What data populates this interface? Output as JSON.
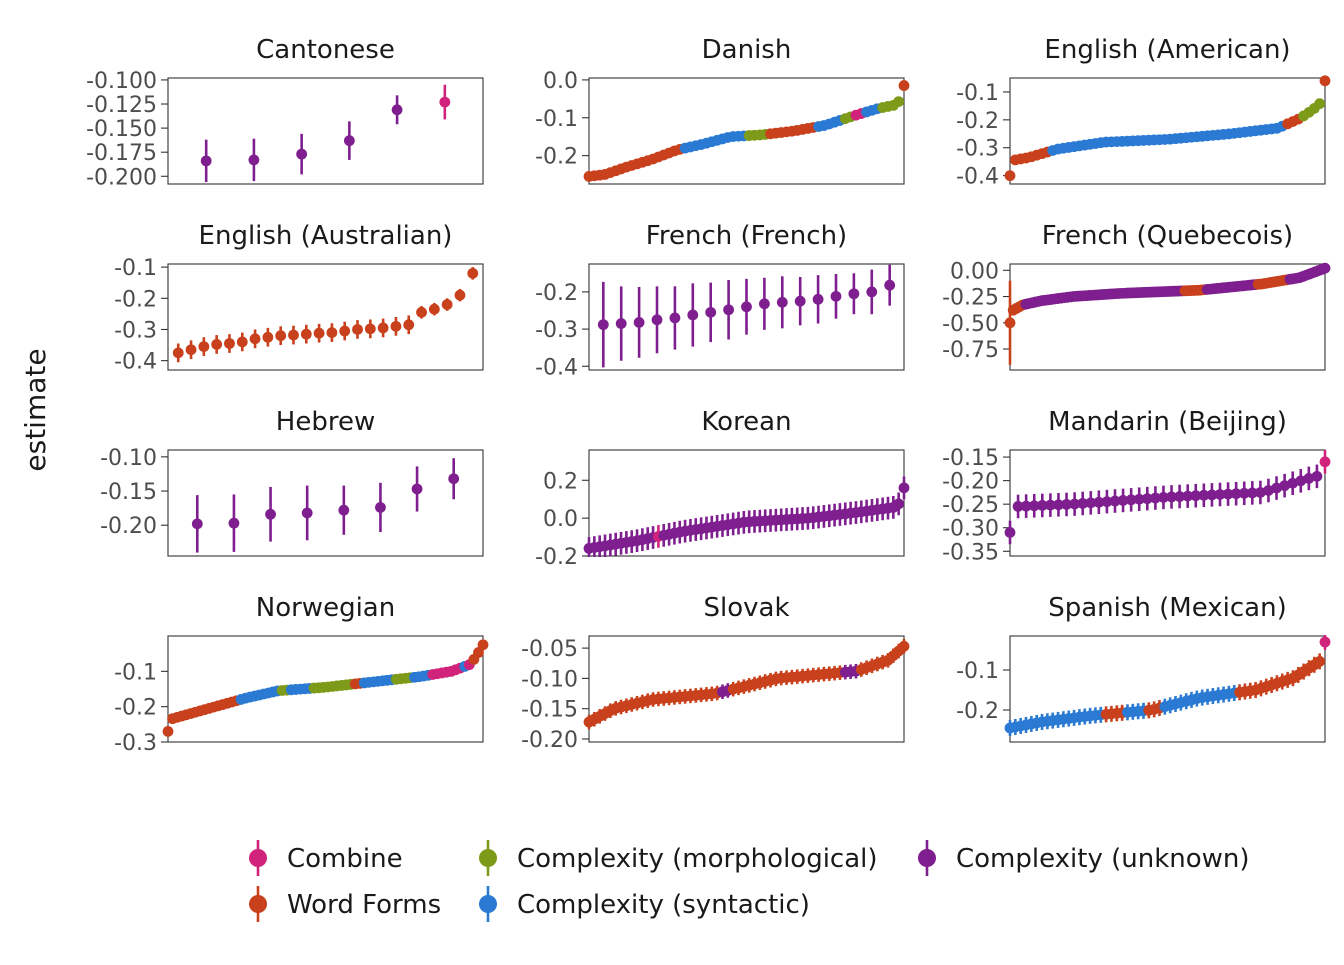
{
  "chart_data": {
    "type": "scatter",
    "subtype": "point-range (estimate with interval), faceted 4x3",
    "ylabel": "estimate",
    "xlabel": "",
    "x_axis": "items ordered by estimate (no tick labels)",
    "grid": false,
    "legend_position": "bottom",
    "legend": [
      {
        "name": "Combine",
        "color": "#D2237C"
      },
      {
        "name": "Word Forms",
        "color": "#C8401C"
      },
      {
        "name": "Complexity (morphological)",
        "color": "#7D9A18"
      },
      {
        "name": "Complexity (syntactic)",
        "color": "#2A7AD4"
      },
      {
        "name": "Complexity (unknown)",
        "color": "#7E1E8F"
      }
    ],
    "panels": [
      {
        "title": "Cantonese",
        "ylim": [
          -0.208,
          -0.098
        ],
        "yticks": [
          -0.2,
          -0.175,
          -0.15,
          -0.125,
          -0.1
        ],
        "tick_labels": [
          "-0.200",
          "-0.175",
          "-0.150",
          "-0.125",
          "-0.100"
        ],
        "points": [
          [
            -0.184,
            0.022,
            4
          ],
          [
            -0.183,
            0.022,
            4
          ],
          [
            -0.177,
            0.021,
            4
          ],
          [
            -0.163,
            0.02,
            4
          ],
          [
            -0.131,
            0.015,
            4
          ],
          [
            -0.123,
            0.018,
            0
          ]
        ]
      },
      {
        "title": "Danish",
        "ylim": [
          -0.275,
          0.005
        ],
        "yticks": [
          -0.2,
          -0.1,
          0.0
        ],
        "tick_labels": [
          "-0.2",
          "-0.1",
          "0.0"
        ],
        "n": 60,
        "stops": [
          [
            0,
            -0.255
          ],
          [
            0.05,
            -0.25
          ],
          [
            0.12,
            -0.23
          ],
          [
            0.2,
            -0.21
          ],
          [
            0.28,
            -0.185
          ],
          [
            0.36,
            -0.17
          ],
          [
            0.45,
            -0.15
          ],
          [
            0.55,
            -0.145
          ],
          [
            0.65,
            -0.135
          ],
          [
            0.75,
            -0.12
          ],
          [
            0.84,
            -0.095
          ],
          [
            0.92,
            -0.075
          ],
          [
            0.98,
            -0.065
          ],
          [
            1,
            -0.015
          ]
        ],
        "err": 0.01,
        "cats": [
          [
            0.3,
            1
          ],
          [
            0.5,
            3
          ],
          [
            0.56,
            2
          ],
          [
            0.72,
            1
          ],
          [
            0.8,
            3
          ],
          [
            0.84,
            2
          ],
          [
            0.88,
            0
          ],
          [
            0.92,
            3
          ],
          [
            1.01,
            2
          ]
        ],
        "last_cat": 1
      },
      {
        "title": "English (American)",
        "ylim": [
          -0.43,
          -0.05
        ],
        "yticks": [
          -0.4,
          -0.3,
          -0.2,
          -0.1
        ],
        "tick_labels": [
          "-0.4",
          "-0.3",
          "-0.2",
          "-0.1"
        ],
        "n": 60,
        "stops": [
          [
            0,
            -0.4
          ],
          [
            0.01,
            -0.345
          ],
          [
            0.06,
            -0.335
          ],
          [
            0.15,
            -0.305
          ],
          [
            0.3,
            -0.28
          ],
          [
            0.5,
            -0.27
          ],
          [
            0.7,
            -0.25
          ],
          [
            0.85,
            -0.23
          ],
          [
            0.92,
            -0.195
          ],
          [
            0.96,
            -0.165
          ],
          [
            0.985,
            -0.14
          ],
          [
            1,
            -0.06
          ]
        ],
        "err": 0.012,
        "cats": [
          [
            0.12,
            1
          ],
          [
            0.88,
            3
          ],
          [
            0.93,
            1
          ],
          [
            1.01,
            2
          ]
        ],
        "last_cat": 1
      },
      {
        "title": "English (Australian)",
        "ylim": [
          -0.43,
          -0.09
        ],
        "yticks": [
          -0.4,
          -0.3,
          -0.2,
          -0.1
        ],
        "tick_labels": [
          "-0.4",
          "-0.3",
          "-0.2",
          "-0.1"
        ],
        "points": [
          [
            -0.375,
            0.03,
            1
          ],
          [
            -0.365,
            0.03,
            1
          ],
          [
            -0.355,
            0.03,
            1
          ],
          [
            -0.348,
            0.03,
            1
          ],
          [
            -0.345,
            0.03,
            1
          ],
          [
            -0.34,
            0.03,
            1
          ],
          [
            -0.33,
            0.03,
            1
          ],
          [
            -0.325,
            0.03,
            1
          ],
          [
            -0.32,
            0.03,
            1
          ],
          [
            -0.318,
            0.03,
            1
          ],
          [
            -0.315,
            0.03,
            1
          ],
          [
            -0.312,
            0.03,
            1
          ],
          [
            -0.31,
            0.03,
            1
          ],
          [
            -0.305,
            0.03,
            1
          ],
          [
            -0.3,
            0.03,
            1
          ],
          [
            -0.298,
            0.03,
            1
          ],
          [
            -0.295,
            0.03,
            1
          ],
          [
            -0.29,
            0.03,
            1
          ],
          [
            -0.285,
            0.03,
            1
          ],
          [
            -0.245,
            0.02,
            1
          ],
          [
            -0.235,
            0.02,
            1
          ],
          [
            -0.22,
            0.02,
            1
          ],
          [
            -0.19,
            0.02,
            1
          ],
          [
            -0.12,
            0.02,
            1
          ]
        ]
      },
      {
        "title": "French (French)",
        "ylim": [
          -0.41,
          -0.125
        ],
        "yticks": [
          -0.4,
          -0.3,
          -0.2
        ],
        "tick_labels": [
          "-0.4",
          "-0.3",
          "-0.2"
        ],
        "points": [
          [
            -0.288,
            0.115,
            4
          ],
          [
            -0.285,
            0.1,
            4
          ],
          [
            -0.282,
            0.095,
            4
          ],
          [
            -0.275,
            0.09,
            4
          ],
          [
            -0.27,
            0.085,
            4
          ],
          [
            -0.262,
            0.085,
            4
          ],
          [
            -0.255,
            0.08,
            4
          ],
          [
            -0.248,
            0.08,
            4
          ],
          [
            -0.24,
            0.075,
            4
          ],
          [
            -0.232,
            0.07,
            4
          ],
          [
            -0.228,
            0.07,
            4
          ],
          [
            -0.225,
            0.065,
            4
          ],
          [
            -0.22,
            0.065,
            4
          ],
          [
            -0.212,
            0.06,
            4
          ],
          [
            -0.205,
            0.055,
            4
          ],
          [
            -0.2,
            0.06,
            4
          ],
          [
            -0.182,
            0.055,
            4
          ]
        ]
      },
      {
        "title": "French (Quebecois)",
        "ylim": [
          -0.95,
          0.06
        ],
        "yticks": [
          -0.75,
          -0.5,
          -0.25,
          0.0
        ],
        "tick_labels": [
          "-0.75",
          "-0.50",
          "-0.25",
          "0.00"
        ],
        "n": 100,
        "stops": [
          [
            0,
            -0.5
          ],
          [
            0.01,
            -0.38
          ],
          [
            0.04,
            -0.33
          ],
          [
            0.1,
            -0.29
          ],
          [
            0.2,
            -0.25
          ],
          [
            0.35,
            -0.22
          ],
          [
            0.6,
            -0.19
          ],
          [
            0.8,
            -0.13
          ],
          [
            0.92,
            -0.07
          ],
          [
            1,
            0.02
          ]
        ],
        "err": 0.03,
        "first_err": 0.4,
        "cats": [
          [
            0.05,
            1
          ],
          [
            0.55,
            4
          ],
          [
            0.62,
            1
          ],
          [
            0.78,
            4
          ],
          [
            0.88,
            1
          ],
          [
            1.01,
            4
          ]
        ],
        "last_cat": 4
      },
      {
        "title": "Hebrew",
        "ylim": [
          -0.245,
          -0.09
        ],
        "yticks": [
          -0.2,
          -0.15,
          -0.1
        ],
        "tick_labels": [
          "-0.20",
          "-0.15",
          "-0.10"
        ],
        "points": [
          [
            -0.198,
            0.042,
            4
          ],
          [
            -0.197,
            0.042,
            4
          ],
          [
            -0.184,
            0.04,
            4
          ],
          [
            -0.182,
            0.04,
            4
          ],
          [
            -0.178,
            0.036,
            4
          ],
          [
            -0.174,
            0.036,
            4
          ],
          [
            -0.147,
            0.033,
            4
          ],
          [
            -0.132,
            0.03,
            4
          ]
        ]
      },
      {
        "title": "Korean",
        "ylim": [
          -0.2,
          0.36
        ],
        "yticks": [
          -0.2,
          0.0,
          0.2
        ],
        "tick_labels": [
          "-0.2",
          "0.0",
          "0.2"
        ],
        "n": 60,
        "stops": [
          [
            0,
            -0.16
          ],
          [
            0.15,
            -0.12
          ],
          [
            0.3,
            -0.07
          ],
          [
            0.5,
            -0.02
          ],
          [
            0.7,
            0.0
          ],
          [
            0.85,
            0.03
          ],
          [
            0.98,
            0.06
          ],
          [
            1,
            0.16
          ]
        ],
        "err": 0.06,
        "cats": [
          [
            0.22,
            4
          ],
          [
            0.23,
            0
          ],
          [
            1.01,
            4
          ]
        ],
        "last_cat": 4
      },
      {
        "title": "Mandarin (Beijing)",
        "ylim": [
          -0.36,
          -0.135
        ],
        "yticks": [
          -0.35,
          -0.3,
          -0.25,
          -0.2,
          -0.15
        ],
        "tick_labels": [
          "-0.35",
          "-0.30",
          "-0.25",
          "-0.20",
          "-0.15"
        ],
        "n": 40,
        "stops": [
          [
            0,
            -0.31
          ],
          [
            0.02,
            -0.255
          ],
          [
            0.2,
            -0.25
          ],
          [
            0.5,
            -0.235
          ],
          [
            0.8,
            -0.225
          ],
          [
            0.95,
            -0.195
          ],
          [
            0.98,
            -0.19
          ],
          [
            1,
            -0.16
          ]
        ],
        "err": 0.025,
        "cats": [
          [
            0.99,
            4
          ],
          [
            1.01,
            0
          ]
        ],
        "last_cat": 0
      },
      {
        "title": "Norwegian",
        "ylim": [
          -0.3,
          0.0
        ],
        "yticks": [
          -0.3,
          -0.2,
          -0.1
        ],
        "tick_labels": [
          "-0.3",
          "-0.2",
          "-0.1"
        ],
        "n": 70,
        "stops": [
          [
            0,
            -0.27
          ],
          [
            0.01,
            -0.235
          ],
          [
            0.15,
            -0.2
          ],
          [
            0.25,
            -0.175
          ],
          [
            0.35,
            -0.155
          ],
          [
            0.5,
            -0.145
          ],
          [
            0.65,
            -0.13
          ],
          [
            0.8,
            -0.115
          ],
          [
            0.9,
            -0.1
          ],
          [
            0.96,
            -0.08
          ],
          [
            0.98,
            -0.055
          ],
          [
            1,
            -0.025
          ]
        ],
        "err": 0.01,
        "cats": [
          [
            0.22,
            1
          ],
          [
            0.35,
            3
          ],
          [
            0.38,
            2
          ],
          [
            0.45,
            3
          ],
          [
            0.58,
            2
          ],
          [
            0.62,
            1
          ],
          [
            0.72,
            3
          ],
          [
            0.78,
            2
          ],
          [
            0.84,
            3
          ],
          [
            0.93,
            0
          ],
          [
            0.95,
            3
          ],
          [
            0.97,
            0
          ],
          [
            1.01,
            1
          ]
        ],
        "last_cat": 1
      },
      {
        "title": "Slovak",
        "ylim": [
          -0.205,
          -0.03
        ],
        "yticks": [
          -0.2,
          -0.15,
          -0.1,
          -0.05
        ],
        "tick_labels": [
          "-0.20",
          "-0.15",
          "-0.10",
          "-0.05"
        ],
        "n": 60,
        "stops": [
          [
            0,
            -0.172
          ],
          [
            0.08,
            -0.15
          ],
          [
            0.2,
            -0.135
          ],
          [
            0.4,
            -0.125
          ],
          [
            0.6,
            -0.1
          ],
          [
            0.85,
            -0.088
          ],
          [
            0.95,
            -0.07
          ],
          [
            1,
            -0.047
          ]
        ],
        "err": 0.012,
        "cats": [
          [
            0.42,
            1
          ],
          [
            0.45,
            4
          ],
          [
            0.8,
            1
          ],
          [
            0.86,
            4
          ],
          [
            0.9,
            1
          ],
          [
            1.01,
            1
          ]
        ],
        "last_cat": 1
      },
      {
        "title": "Spanish (Mexican)",
        "ylim": [
          -0.28,
          -0.015
        ],
        "yticks": [
          -0.2,
          -0.1
        ],
        "tick_labels": [
          "-0.2",
          "-0.1"
        ],
        "n": 60,
        "stops": [
          [
            0,
            -0.245
          ],
          [
            0.1,
            -0.23
          ],
          [
            0.25,
            -0.215
          ],
          [
            0.45,
            -0.2
          ],
          [
            0.6,
            -0.17
          ],
          [
            0.78,
            -0.15
          ],
          [
            0.9,
            -0.12
          ],
          [
            0.97,
            -0.085
          ],
          [
            0.99,
            -0.075
          ],
          [
            1,
            -0.03
          ]
        ],
        "err": 0.02,
        "cats": [
          [
            0.3,
            3
          ],
          [
            0.36,
            1
          ],
          [
            0.44,
            3
          ],
          [
            0.49,
            1
          ],
          [
            0.72,
            3
          ],
          [
            1.0,
            1
          ],
          [
            1.01,
            0
          ]
        ],
        "last_cat": 0
      }
    ]
  }
}
